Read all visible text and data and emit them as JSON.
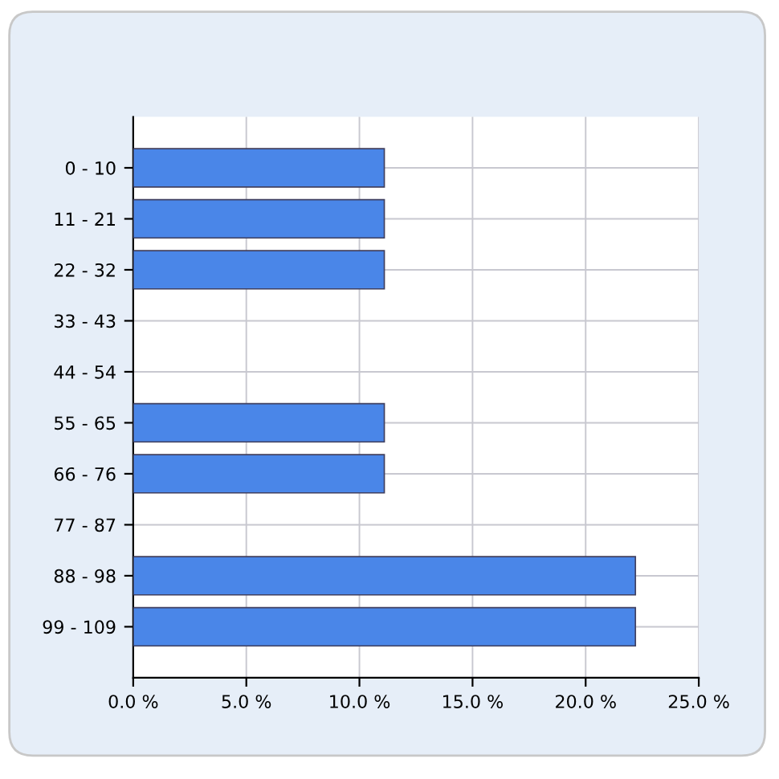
{
  "chart_data": {
    "type": "bar",
    "orientation": "horizontal",
    "categories": [
      "0 - 10",
      "11 - 21",
      "22 - 32",
      "33 - 43",
      "44 - 54",
      "55 - 65",
      "66 - 76",
      "77 - 87",
      "88 - 98",
      "99 - 109"
    ],
    "values": [
      11.1,
      11.1,
      11.1,
      0,
      0,
      11.1,
      11.1,
      0,
      22.2,
      22.2
    ],
    "color": "#4a86e8",
    "xlim": [
      0,
      25
    ],
    "xticks": [
      {
        "value": 0,
        "label": "0.0 %"
      },
      {
        "value": 5,
        "label": "5.0 %"
      },
      {
        "value": 10,
        "label": "10.0 %"
      },
      {
        "value": 15,
        "label": "15.0 %"
      },
      {
        "value": 20,
        "label": "20.0 %"
      },
      {
        "value": 25,
        "label": "25.0 %"
      }
    ],
    "grid": true,
    "legend": false
  }
}
